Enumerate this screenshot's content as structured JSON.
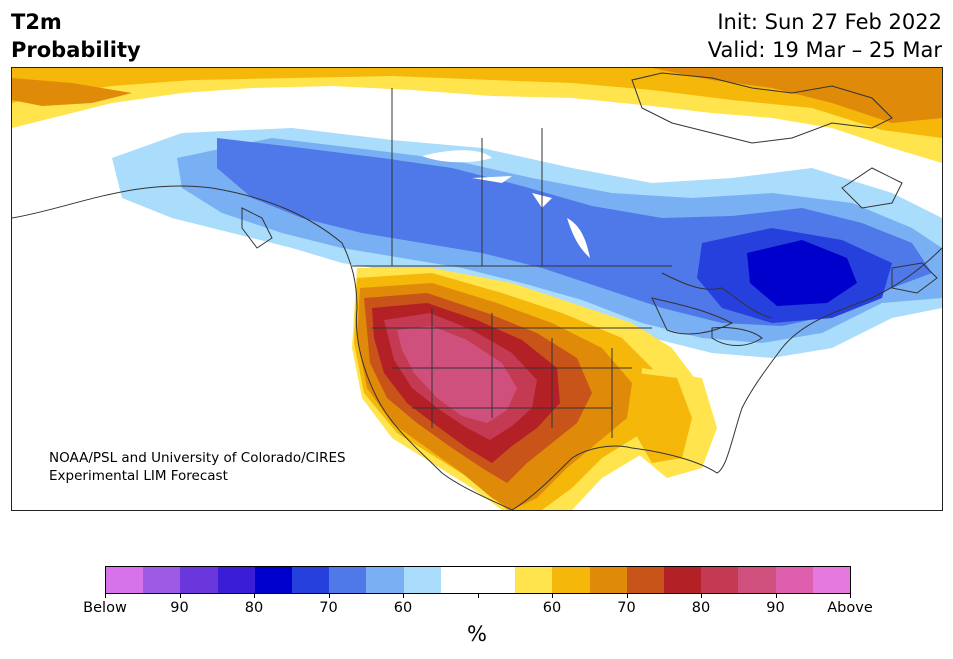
{
  "header": {
    "variable": "T2m",
    "subtitle": "Probability",
    "init": "Init: Sun 27 Feb 2022",
    "valid": "Valid: 19 Mar – 25 Mar"
  },
  "credit": {
    "line1": "NOAA/PSL and University of Colorado/CIRES",
    "line2": "Experimental LIM Forecast"
  },
  "colorbar": {
    "unit": "%",
    "colors": [
      "#d672ea",
      "#9f5ae5",
      "#6a37dc",
      "#3a1ed6",
      "#0000cc",
      "#2540dd",
      "#4f78e8",
      "#78b0f3",
      "#aadcfc",
      "#ffffff",
      "#ffffff",
      "#ffe44d",
      "#f4b70a",
      "#e08a0a",
      "#c9541a",
      "#b32026",
      "#c43a52",
      "#cf4f7d",
      "#dd5fad",
      "#e679de"
    ],
    "ticks": [
      "Below",
      "90",
      "80",
      "70",
      "60",
      "",
      "60",
      "70",
      "80",
      "90",
      "Above"
    ]
  },
  "map": {
    "category_colors": {
      "below_60": "#aadcfc",
      "below_70": "#78b0f3",
      "below_80": "#4f78e8",
      "below_85": "#2540dd",
      "below_90": "#0000cc",
      "above_60": "#ffe44d",
      "above_70": "#f4b70a",
      "above_75": "#e08a0a",
      "above_80": "#c9541a",
      "above_85": "#b32026",
      "above_90": "#c43a52",
      "above_95": "#cf4f7d"
    }
  }
}
